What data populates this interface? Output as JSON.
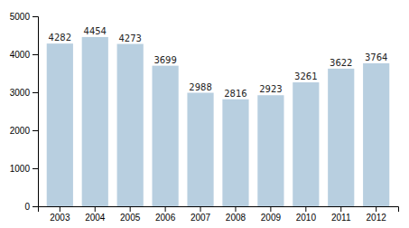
{
  "chart_data": {
    "type": "bar",
    "categories": [
      "2003",
      "2004",
      "2005",
      "2006",
      "2007",
      "2008",
      "2009",
      "2010",
      "2011",
      "2012"
    ],
    "values": [
      4282,
      4454,
      4273,
      3699,
      2988,
      2816,
      2923,
      3261,
      3622,
      3764
    ],
    "color": "#b8cfe0",
    "ylim": [
      0,
      5000
    ],
    "yticks": [
      0,
      1000,
      2000,
      3000,
      4000,
      5000
    ],
    "grid": false,
    "data_labels": true
  }
}
